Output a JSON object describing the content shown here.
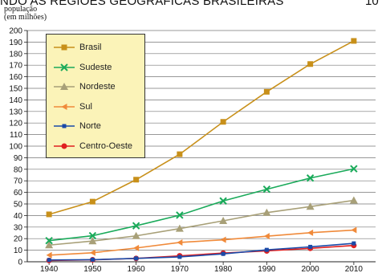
{
  "header": {
    "title_fragment": "NDO AS REGIÕES GEOGRÁFICAS BRASILEIRAS",
    "page_fragment": "10"
  },
  "chart_data": {
    "type": "line",
    "ylabel_lines": [
      "população",
      "(em milhões)"
    ],
    "xlabel": "",
    "x": [
      1940,
      1950,
      1960,
      1970,
      1980,
      1990,
      2000,
      2010
    ],
    "ylim": [
      0,
      200
    ],
    "yticks": [
      0,
      10,
      20,
      30,
      40,
      50,
      60,
      70,
      80,
      90,
      100,
      110,
      120,
      130,
      140,
      150,
      160,
      170,
      180,
      190,
      200
    ],
    "grid": "horizontal",
    "legend_position": "top-left",
    "series": [
      {
        "name": "Brasil",
        "color": "#c8901a",
        "marker": "square",
        "values": [
          41,
          52,
          71,
          93,
          121,
          147,
          171,
          191
        ]
      },
      {
        "name": "Sudeste",
        "color": "#1aaa5a",
        "marker": "x",
        "values": [
          18.3,
          22.5,
          31.1,
          40.3,
          52.6,
          62.7,
          72.4,
          80.4
        ]
      },
      {
        "name": "Nordeste",
        "color": "#a8a078",
        "marker": "triangle",
        "values": [
          14.4,
          17.9,
          22.4,
          28.7,
          35.4,
          42.5,
          47.7,
          53.1
        ]
      },
      {
        "name": "Sul",
        "color": "#f08a3a",
        "marker": "arrow",
        "values": [
          5.7,
          7.8,
          11.9,
          16.7,
          19.0,
          22.1,
          25.1,
          27.4
        ]
      },
      {
        "name": "Norte",
        "color": "#1a4aa8",
        "marker": "dash",
        "values": [
          1.5,
          1.8,
          2.9,
          4.2,
          6.8,
          10.3,
          12.9,
          15.9
        ]
      },
      {
        "name": "Centro-Oeste",
        "color": "#e02020",
        "marker": "circle",
        "values": [
          1.1,
          1.7,
          2.9,
          5.1,
          7.5,
          9.4,
          11.6,
          14.1
        ]
      }
    ]
  }
}
